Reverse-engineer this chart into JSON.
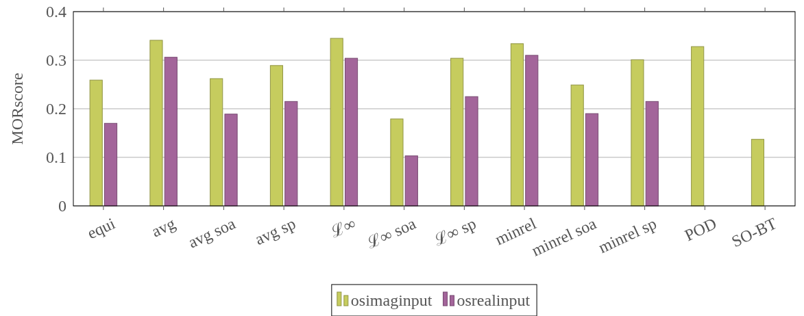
{
  "chart_data": {
    "type": "bar",
    "ylabel": "MORscore",
    "categories": [
      "equi",
      "avg",
      "avg soa",
      "avg sp",
      "ℒ∞",
      "ℒ∞ soa",
      "ℒ∞ sp",
      "minrel",
      "minrel soa",
      "minrel sp",
      "POD",
      "SO-BT"
    ],
    "series": [
      {
        "name": "osimaginput",
        "color": "#c6cc5e",
        "values": [
          0.259,
          0.341,
          0.262,
          0.289,
          0.345,
          0.179,
          0.304,
          0.334,
          0.249,
          0.301,
          0.328,
          0.137
        ]
      },
      {
        "name": "osrealinput",
        "color": "#a3659a",
        "values": [
          0.17,
          0.306,
          0.189,
          0.215,
          0.304,
          0.103,
          0.225,
          0.31,
          0.19,
          0.215,
          0,
          null
        ]
      }
    ],
    "ylim": [
      0,
      0.4
    ],
    "yticks": [
      0,
      0.1,
      0.2,
      0.3,
      0.4
    ],
    "grid": "y",
    "legend": "bottom"
  }
}
